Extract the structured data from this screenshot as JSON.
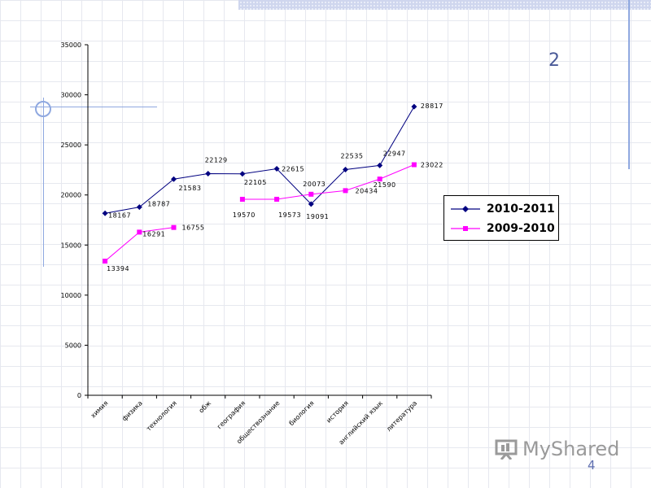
{
  "slide": {
    "number_label": "2",
    "page_number": "4",
    "logo_text": "MyShared"
  },
  "chart_data": {
    "type": "line",
    "categories": [
      "химия",
      "физика",
      "технология",
      "обж",
      "география",
      "обществознание",
      "биология",
      "история",
      "английский язык",
      "литература"
    ],
    "ylim": [
      0,
      35000
    ],
    "yticks": [
      0,
      5000,
      10000,
      15000,
      20000,
      25000,
      30000,
      35000
    ],
    "grid": false,
    "legend_position": "right",
    "series": [
      {
        "name": "2010-2011",
        "color": "#000080",
        "marker": "diamond",
        "values": [
          18167,
          18787,
          21583,
          22129,
          22105,
          22615,
          19091,
          22535,
          22947,
          28817
        ],
        "labels": [
          "18167",
          "18787",
          "21583",
          "22129",
          "22105",
          "22615",
          "19091",
          "22535",
          "22947",
          "28817"
        ]
      },
      {
        "name": "2009-2010",
        "color": "#ff00ff",
        "marker": "square",
        "values": [
          13394,
          16291,
          16755,
          null,
          19570,
          19573,
          20073,
          20434,
          21590,
          23022
        ],
        "labels": [
          "13394",
          "16291",
          "16755",
          "",
          "19570",
          "19573",
          "20073",
          "20434",
          "21590",
          "23022"
        ]
      }
    ]
  }
}
